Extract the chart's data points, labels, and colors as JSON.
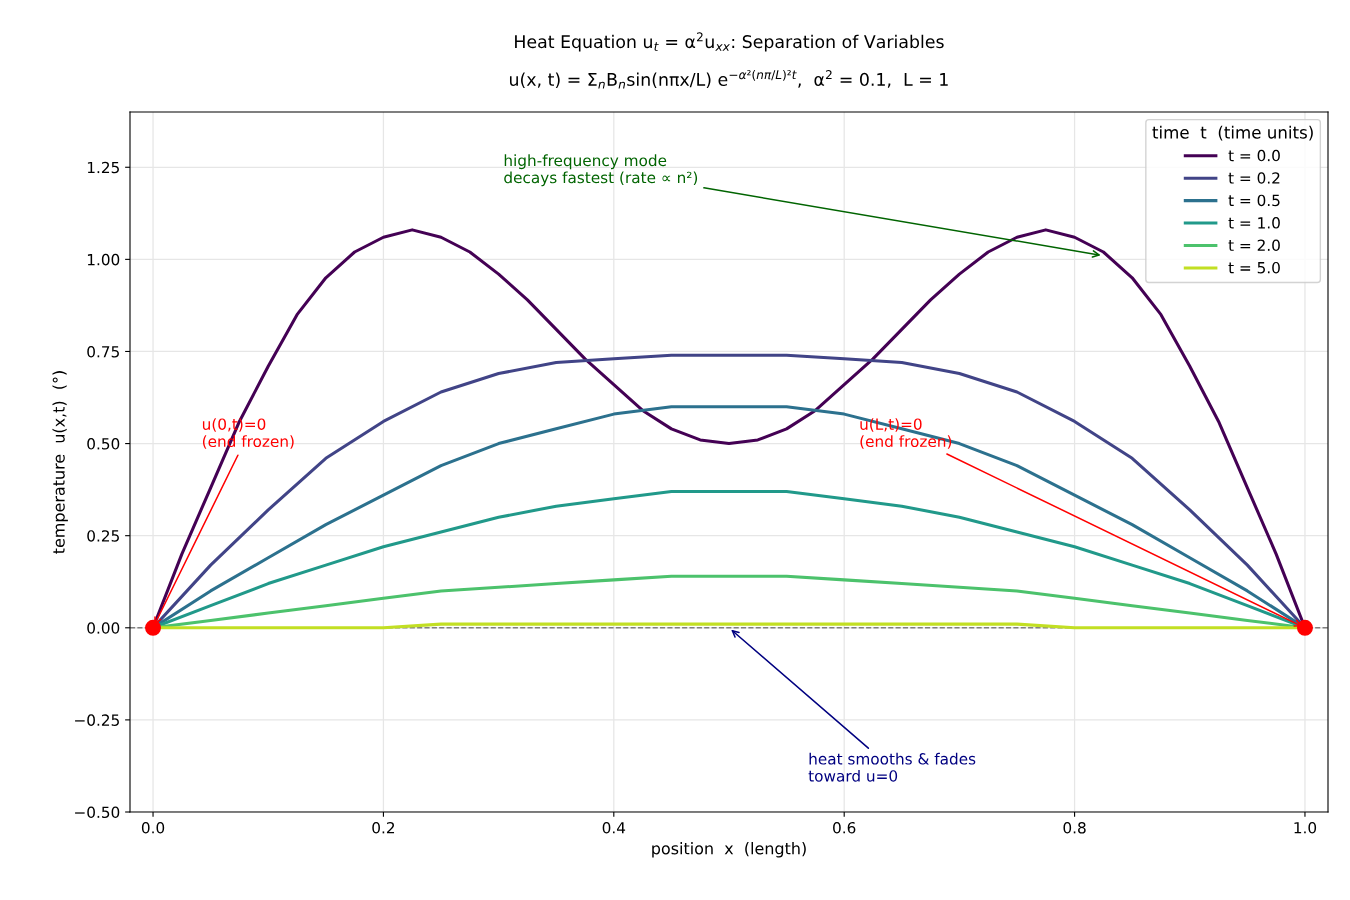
{
  "chart_data": {
    "type": "line",
    "title": "Heat Equation u$_{t}$ = α$^{2}$u$_{xx}$: Separation of Variables",
    "subtitle": "u(x, t) = Σ$_{n}$B$_{n}$sin(nπx/L) e$^{−α²(nπ/L)²t}$,  α$^{2}$ = 0.1,  L = 1",
    "xlabel": "position  x  (length)",
    "ylabel": "temperature  u(x,t)  (°)",
    "legend_title": "time  t  (time units)",
    "legend": "top right",
    "grid": true,
    "marker": "none",
    "line_style": "solid",
    "xlim": [
      -0.02,
      1.02
    ],
    "ylim": [
      -0.5,
      1.4
    ],
    "xticks": [
      {
        "value": 0,
        "label": "0.0"
      },
      {
        "value": 0.2,
        "label": "0.2"
      },
      {
        "value": 0.4,
        "label": "0.4"
      },
      {
        "value": 0.6,
        "label": "0.6"
      },
      {
        "value": 0.8,
        "label": "0.8"
      },
      {
        "value": 1,
        "label": "1.0"
      }
    ],
    "yticks": [
      {
        "value": -0.5,
        "label": "−0.50"
      },
      {
        "value": -0.25,
        "label": "−0.25"
      },
      {
        "value": 0,
        "label": "0.00"
      },
      {
        "value": 0.25,
        "label": "0.25"
      },
      {
        "value": 0.5,
        "label": "0.50"
      },
      {
        "value": 0.75,
        "label": "0.75"
      },
      {
        "value": 1,
        "label": "1.00"
      },
      {
        "value": 1.25,
        "label": "1.25"
      }
    ],
    "series": [
      {
        "name": "t = 0.0",
        "color": "#440154",
        "x": [
          0,
          0.025,
          0.05,
          0.075,
          0.1,
          0.125,
          0.15,
          0.175,
          0.2,
          0.225,
          0.25,
          0.275,
          0.3,
          0.325,
          0.35,
          0.375,
          0.4,
          0.425,
          0.45,
          0.475,
          0.5,
          0.525,
          0.55,
          0.575,
          0.6,
          0.625,
          0.65,
          0.675,
          0.7,
          0.725,
          0.75,
          0.775,
          0.8,
          0.825,
          0.85,
          0.875,
          0.9,
          0.925,
          0.95,
          0.975,
          1
        ],
        "values": [
          0,
          0.2,
          0.38,
          0.56,
          0.71,
          0.85,
          0.95,
          1.02,
          1.06,
          1.08,
          1.06,
          1.02,
          0.96,
          0.89,
          0.81,
          0.73,
          0.66,
          0.59,
          0.54,
          0.51,
          0.5,
          0.51,
          0.54,
          0.59,
          0.66,
          0.73,
          0.81,
          0.89,
          0.96,
          1.02,
          1.06,
          1.08,
          1.06,
          1.02,
          0.95,
          0.85,
          0.71,
          0.56,
          0.38,
          0.2,
          0
        ]
      },
      {
        "name": "t = 0.2",
        "color": "#414487",
        "x": [
          0,
          0.05,
          0.1,
          0.15,
          0.2,
          0.25,
          0.3,
          0.35,
          0.4,
          0.45,
          0.5,
          0.55,
          0.6,
          0.65,
          0.7,
          0.75,
          0.8,
          0.85,
          0.9,
          0.95,
          1
        ],
        "values": [
          0,
          0.17,
          0.32,
          0.46,
          0.56,
          0.64,
          0.69,
          0.72,
          0.73,
          0.74,
          0.74,
          0.74,
          0.73,
          0.72,
          0.69,
          0.64,
          0.56,
          0.46,
          0.32,
          0.17,
          0
        ]
      },
      {
        "name": "t = 0.5",
        "color": "#2c718e",
        "x": [
          0,
          0.05,
          0.1,
          0.15,
          0.2,
          0.25,
          0.3,
          0.35,
          0.4,
          0.45,
          0.5,
          0.55,
          0.6,
          0.65,
          0.7,
          0.75,
          0.8,
          0.85,
          0.9,
          0.95,
          1
        ],
        "values": [
          0,
          0.1,
          0.19,
          0.28,
          0.36,
          0.44,
          0.5,
          0.54,
          0.58,
          0.6,
          0.6,
          0.6,
          0.58,
          0.54,
          0.5,
          0.44,
          0.36,
          0.28,
          0.19,
          0.1,
          0
        ]
      },
      {
        "name": "t = 1.0",
        "color": "#21998a",
        "x": [
          0,
          0.05,
          0.1,
          0.15,
          0.2,
          0.25,
          0.3,
          0.35,
          0.4,
          0.45,
          0.5,
          0.55,
          0.6,
          0.65,
          0.7,
          0.75,
          0.8,
          0.85,
          0.9,
          0.95,
          1
        ],
        "values": [
          0,
          0.06,
          0.12,
          0.17,
          0.22,
          0.26,
          0.3,
          0.33,
          0.35,
          0.37,
          0.37,
          0.37,
          0.35,
          0.33,
          0.3,
          0.26,
          0.22,
          0.17,
          0.12,
          0.06,
          0
        ]
      },
      {
        "name": "t = 2.0",
        "color": "#4cc26c",
        "x": [
          0,
          0.05,
          0.1,
          0.15,
          0.2,
          0.25,
          0.3,
          0.35,
          0.4,
          0.45,
          0.5,
          0.55,
          0.6,
          0.65,
          0.7,
          0.75,
          0.8,
          0.85,
          0.9,
          0.95,
          1
        ],
        "values": [
          0,
          0.02,
          0.04,
          0.06,
          0.08,
          0.1,
          0.11,
          0.12,
          0.13,
          0.14,
          0.14,
          0.14,
          0.13,
          0.12,
          0.11,
          0.1,
          0.08,
          0.06,
          0.04,
          0.02,
          0
        ]
      },
      {
        "name": "t = 5.0",
        "color": "#c2df23",
        "x": [
          0,
          0.05,
          0.1,
          0.15,
          0.2,
          0.25,
          0.3,
          0.35,
          0.4,
          0.45,
          0.5,
          0.55,
          0.6,
          0.65,
          0.7,
          0.75,
          0.8,
          0.85,
          0.9,
          0.95,
          1
        ],
        "values": [
          0,
          0,
          0,
          0,
          0,
          0.01,
          0.01,
          0.01,
          0.01,
          0.01,
          0.01,
          0.01,
          0.01,
          0.01,
          0.01,
          0.01,
          0,
          0,
          0,
          0,
          0
        ]
      },
      {
        "type": "scatter",
        "marker": "circle",
        "color": "#ff0000",
        "x": [
          0,
          1
        ],
        "values": [
          0,
          0
        ]
      }
    ],
    "ref_lines": [
      {
        "axis": "y",
        "value": 0,
        "color": "#808080",
        "line_style": "dashed"
      }
    ],
    "annotations": [
      {
        "text": "u(0,t)=0\n(end frozen)",
        "x": 0,
        "y": 0
      },
      {
        "text": "u(L,t)=0\n(end frozen)",
        "x": 1,
        "y": 0
      },
      {
        "text": "high-frequency mode\ndecays fastest (rate ∝ n²)",
        "x": 0.825,
        "y": 1.01
      },
      {
        "text": "heat smooths & fades\ntoward u=0",
        "x": 0.5,
        "y": 0
      }
    ]
  }
}
